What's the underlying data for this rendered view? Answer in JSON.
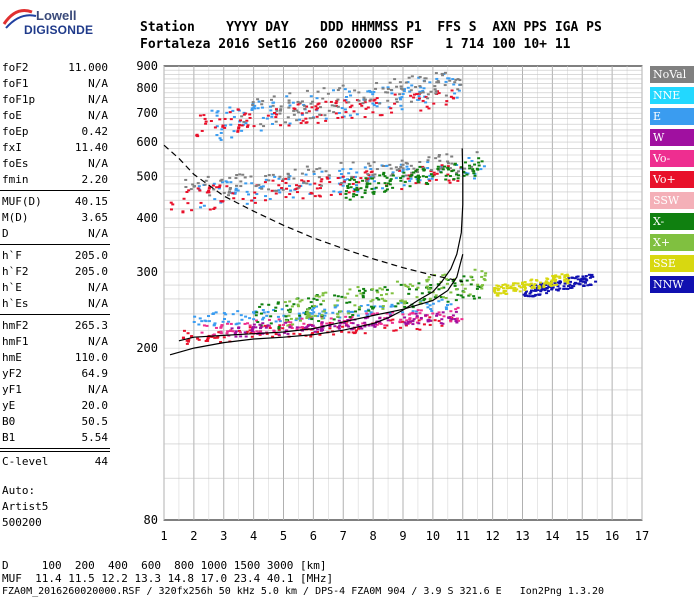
{
  "logo": {
    "line1": "Lowell",
    "line2": "DIGISONDE"
  },
  "header": {
    "labels": "Station    YYYY DAY    DDD HHMMSS P1  FFS S  AXN PPS IGA PS",
    "values": "Fortaleza 2016 Set16 260 020000 RSF    1 714 100 10+ 11"
  },
  "params_group1": [
    {
      "key": "foF2",
      "value": "11.000"
    },
    {
      "key": "foF1",
      "value": "N/A"
    },
    {
      "key": "foF1p",
      "value": "N/A"
    },
    {
      "key": "foE",
      "value": "N/A"
    },
    {
      "key": "foEp",
      "value": "0.42"
    },
    {
      "key": "fxI",
      "value": "11.40"
    },
    {
      "key": "foEs",
      "value": "N/A"
    },
    {
      "key": "fmin",
      "value": "2.20"
    }
  ],
  "params_group2": [
    {
      "key": "MUF(D)",
      "value": "40.15"
    },
    {
      "key": "M(D)",
      "value": "3.65"
    },
    {
      "key": "D",
      "value": "N/A"
    }
  ],
  "params_group3": [
    {
      "key": "h`F",
      "value": "205.0"
    },
    {
      "key": "h`F2",
      "value": "205.0"
    },
    {
      "key": "h`E",
      "value": "N/A"
    },
    {
      "key": "h`Es",
      "value": "N/A"
    }
  ],
  "params_group4": [
    {
      "key": "hmF2",
      "value": "265.3"
    },
    {
      "key": "hmF1",
      "value": "N/A"
    },
    {
      "key": "hmE",
      "value": "110.0"
    },
    {
      "key": "yF2",
      "value": "64.9"
    },
    {
      "key": "yF1",
      "value": "N/A"
    },
    {
      "key": "yE",
      "value": "20.0"
    },
    {
      "key": "B0",
      "value": "50.5"
    },
    {
      "key": "B1",
      "value": "5.54"
    }
  ],
  "clevel": {
    "key": "C-level",
    "value": "44"
  },
  "auto": {
    "line1": "Auto:",
    "line2": "Artist5",
    "line3": "500200"
  },
  "footer": {
    "d_row": "D     100  200  400  600  800 1000 1500 3000 [km]",
    "muf_row": "MUF  11.4 11.5 12.2 13.3 14.8 17.0 23.4 40.1 [MHz]",
    "file_row": "FZA0M_2016260020000.RSF / 320fx256h 50 kHz 5.0 km / DPS-4 FZA0M 904 / 3.9 S 321.6 E   Ion2Png 1.3.20"
  },
  "legend": [
    {
      "label": "NoVal",
      "color": "#808080"
    },
    {
      "label": "NNE",
      "color": "#22d8ff"
    },
    {
      "label": "E",
      "color": "#3a9cf0"
    },
    {
      "label": "W",
      "color": "#a010a0"
    },
    {
      "label": "Vo-",
      "color": "#ee2e90"
    },
    {
      "label": "Vo+",
      "color": "#e8102a"
    },
    {
      "label": "SSW",
      "color": "#f4b0b8"
    },
    {
      "label": "X-",
      "color": "#108010"
    },
    {
      "label": "X+",
      "color": "#80c040"
    },
    {
      "label": "SSE",
      "color": "#d8d810"
    },
    {
      "label": "NNW",
      "color": "#1010b0"
    }
  ],
  "chart_data": {
    "type": "scatter",
    "title": "",
    "xlabel": "",
    "ylabel": "",
    "xlim": [
      1,
      17
    ],
    "ylim": [
      80,
      900
    ],
    "y_scale": "log",
    "x_ticks": [
      1,
      2,
      3,
      4,
      5,
      6,
      7,
      8,
      9,
      10,
      11,
      12,
      13,
      14,
      15,
      16,
      17
    ],
    "y_ticks": [
      80,
      200,
      300,
      400,
      500,
      600,
      700,
      800,
      900
    ],
    "grid": true,
    "legend_position": "right",
    "series": [
      {
        "name": "profile",
        "style": "solid",
        "x": [
          1.2,
          2,
          3,
          4,
          5,
          6,
          7,
          8,
          8.5,
          9,
          9.5,
          10,
          10.3,
          10.6,
          10.8,
          10.95,
          11.0,
          11.0,
          10.98
        ],
        "y": [
          193,
          200,
          206,
          210,
          212,
          215,
          220,
          228,
          235,
          245,
          258,
          270,
          285,
          305,
          330,
          370,
          430,
          500,
          580
        ]
      },
      {
        "name": "trace",
        "style": "solid",
        "x": [
          1.5,
          2,
          3,
          4,
          5,
          6,
          7,
          8,
          9,
          10,
          10.5,
          10.8,
          11.0
        ],
        "y": [
          208,
          212,
          214,
          216,
          218,
          222,
          230,
          238,
          246,
          258,
          272,
          292,
          330
        ]
      },
      {
        "name": "muf",
        "style": "dashed",
        "x": [
          1.0,
          1.5,
          2,
          3,
          4,
          5,
          6,
          7,
          8,
          9,
          10,
          10.5,
          11.0
        ],
        "y": [
          590,
          550,
          505,
          450,
          415,
          385,
          360,
          340,
          322,
          307,
          295,
          290,
          285
        ]
      }
    ],
    "scatter_clusters": [
      {
        "color": "#3a9cf0",
        "x": [
          1.9,
          10.8
        ],
        "y": [
          225,
          262
        ]
      },
      {
        "color": "#e8102a",
        "x": [
          1.6,
          10.9
        ],
        "y": [
          205,
          240
        ]
      },
      {
        "color": "#ee2e90",
        "x": [
          2.0,
          11.0
        ],
        "y": [
          212,
          250
        ]
      },
      {
        "color": "#108010",
        "x": [
          4.0,
          11.6
        ],
        "y": [
          218,
          300
        ]
      },
      {
        "color": "#80c040",
        "x": [
          5.0,
          11.8
        ],
        "y": [
          225,
          310
        ]
      },
      {
        "color": "#a010a0",
        "x": [
          3.0,
          10.8
        ],
        "y": [
          212,
          245
        ]
      },
      {
        "color": "#1010b0",
        "x": [
          13.0,
          15.4
        ],
        "y": [
          262,
          300
        ]
      },
      {
        "color": "#d8d810",
        "x": [
          12.0,
          14.5
        ],
        "y": [
          265,
          300
        ]
      },
      {
        "color": "#3a9cf0",
        "x": [
          2.0,
          11.7
        ],
        "y": [
          420,
          560
        ]
      },
      {
        "color": "#e8102a",
        "x": [
          1.0,
          11.0
        ],
        "y": [
          410,
          540
        ]
      },
      {
        "color": "#808080",
        "x": [
          1.6,
          11.6
        ],
        "y": [
          440,
          575
        ]
      },
      {
        "color": "#108010",
        "x": [
          7.0,
          11.6
        ],
        "y": [
          440,
          560
        ]
      },
      {
        "color": "#3a9cf0",
        "x": [
          2.5,
          10.9
        ],
        "y": [
          600,
          880
        ]
      },
      {
        "color": "#e8102a",
        "x": [
          1.9,
          10.7
        ],
        "y": [
          620,
          800
        ]
      },
      {
        "color": "#808080",
        "x": [
          3.5,
          10.9
        ],
        "y": [
          640,
          890
        ]
      }
    ]
  }
}
